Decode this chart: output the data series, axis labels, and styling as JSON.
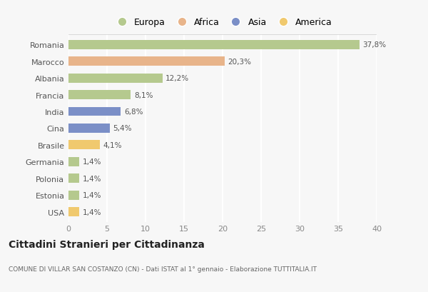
{
  "categories": [
    "Romania",
    "Marocco",
    "Albania",
    "Francia",
    "India",
    "Cina",
    "Brasile",
    "Germania",
    "Polonia",
    "Estonia",
    "USA"
  ],
  "values": [
    37.8,
    20.3,
    12.2,
    8.1,
    6.8,
    5.4,
    4.1,
    1.4,
    1.4,
    1.4,
    1.4
  ],
  "labels": [
    "37,8%",
    "20,3%",
    "12,2%",
    "8,1%",
    "6,8%",
    "5,4%",
    "4,1%",
    "1,4%",
    "1,4%",
    "1,4%",
    "1,4%"
  ],
  "colors": [
    "#b5c98e",
    "#e8b48a",
    "#b5c98e",
    "#b5c98e",
    "#7b8fc7",
    "#7b8fc7",
    "#f0c96e",
    "#b5c98e",
    "#b5c98e",
    "#b5c98e",
    "#f0c96e"
  ],
  "legend_labels": [
    "Europa",
    "Africa",
    "Asia",
    "America"
  ],
  "legend_colors": [
    "#b5c98e",
    "#e8b48a",
    "#7b8fc7",
    "#f0c96e"
  ],
  "title": "Cittadini Stranieri per Cittadinanza",
  "subtitle": "COMUNE DI VILLAR SAN COSTANZO (CN) - Dati ISTAT al 1° gennaio - Elaborazione TUTTITALIA.IT",
  "xlim": [
    0,
    40
  ],
  "xticks": [
    0,
    5,
    10,
    15,
    20,
    25,
    30,
    35,
    40
  ],
  "bg_color": "#f7f7f7",
  "grid_color": "#ffffff",
  "bar_height": 0.55
}
